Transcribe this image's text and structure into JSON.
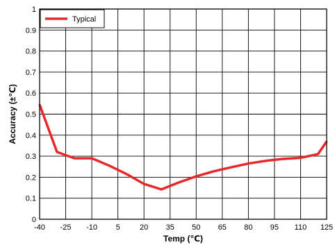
{
  "chart_data": {
    "type": "line",
    "title": "",
    "xlabel": "Temp (℃)",
    "ylabel": "Accuracy (±℃)",
    "xlim": [
      -40,
      125
    ],
    "ylim": [
      0,
      1
    ],
    "x_ticks": [
      "-40",
      "-25",
      "-10",
      "5",
      "20",
      "35",
      "50",
      "65",
      "80",
      "95",
      "110",
      "125"
    ],
    "y_ticks": [
      "0",
      "0.1",
      "0.2",
      "0.3",
      "0.4",
      "0.5",
      "0.6",
      "0.7",
      "0.8",
      "0.9",
      "1"
    ],
    "grid": true,
    "legend_position": "top-left",
    "series": [
      {
        "name": "Typical",
        "color": "#e8282b",
        "x": [
          -40,
          -30,
          -25,
          -20,
          -10,
          0,
          10,
          20,
          30,
          40,
          50,
          60,
          70,
          80,
          90,
          100,
          110,
          120,
          125
        ],
        "y": [
          0.545,
          0.32,
          0.305,
          0.29,
          0.29,
          0.255,
          0.215,
          0.168,
          0.142,
          0.175,
          0.204,
          0.228,
          0.247,
          0.265,
          0.278,
          0.287,
          0.292,
          0.31,
          0.37
        ]
      }
    ]
  }
}
